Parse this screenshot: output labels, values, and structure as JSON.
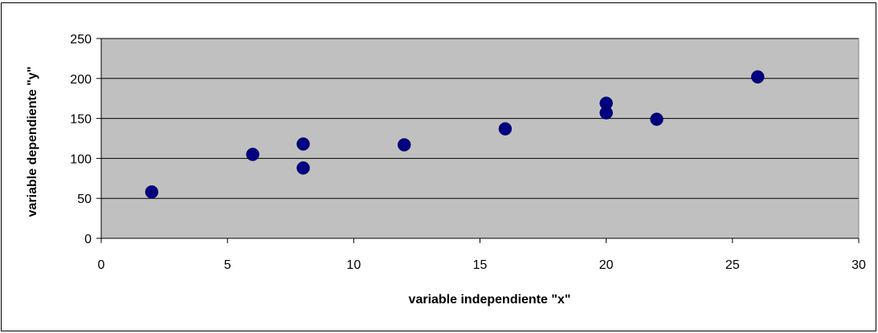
{
  "chart_data": {
    "type": "scatter",
    "title": "",
    "xlabel": "variable independiente \"x\"",
    "ylabel": "variable dependiente \"y\"",
    "xlim": [
      0,
      30
    ],
    "ylim": [
      0,
      250
    ],
    "x_ticks": [
      0,
      5,
      10,
      15,
      20,
      25,
      30
    ],
    "y_ticks": [
      0,
      50,
      100,
      150,
      200,
      250
    ],
    "grid": "horizontal",
    "legend": "none",
    "series": [
      {
        "color": "#000080",
        "points": [
          {
            "x": 2,
            "y": 58
          },
          {
            "x": 6,
            "y": 105
          },
          {
            "x": 8,
            "y": 88
          },
          {
            "x": 8,
            "y": 118
          },
          {
            "x": 12,
            "y": 117
          },
          {
            "x": 16,
            "y": 137
          },
          {
            "x": 20,
            "y": 157
          },
          {
            "x": 20,
            "y": 169
          },
          {
            "x": 22,
            "y": 149
          },
          {
            "x": 26,
            "y": 202
          }
        ]
      }
    ],
    "plot_background": "#c0c0c0"
  }
}
